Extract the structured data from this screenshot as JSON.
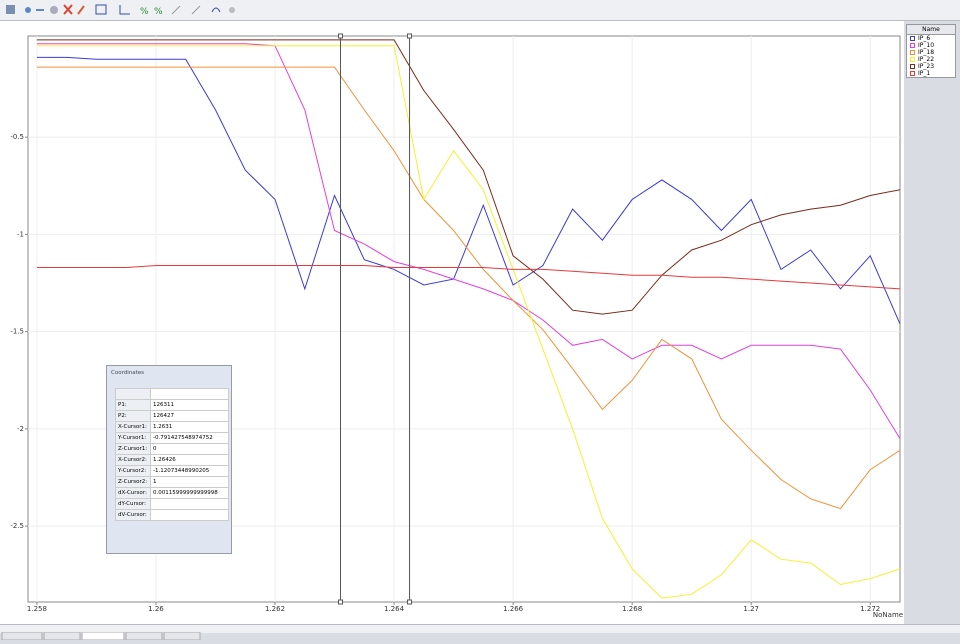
{
  "chart_data": {
    "type": "line",
    "x": [
      1.258,
      1.2585,
      1.259,
      1.2595,
      1.26,
      1.2605,
      1.261,
      1.2615,
      1.262,
      1.2625,
      1.263,
      1.2635,
      1.264,
      1.2645,
      1.265,
      1.2655,
      1.266,
      1.2665,
      1.267,
      1.2675,
      1.268,
      1.2685,
      1.269,
      1.2695,
      1.27,
      1.2705,
      1.271,
      1.2715,
      1.272,
      1.2725
    ],
    "series": [
      {
        "name": "IP_6",
        "color": "#3b3bd6",
        "values": [
          -0.09,
          -0.09,
          -0.1,
          -0.1,
          -0.1,
          -0.1,
          -0.36,
          -0.67,
          -0.82,
          -1.28,
          -0.8,
          -1.13,
          -1.18,
          -1.26,
          -1.23,
          -0.85,
          -1.26,
          -1.16,
          -0.87,
          -1.03,
          -0.82,
          -0.72,
          -0.82,
          -0.98,
          -0.82,
          -1.18,
          -1.08,
          -1.28,
          -1.11,
          -1.46
        ]
      },
      {
        "name": "IP_10",
        "color": "#e040e0",
        "values": [
          -0.02,
          -0.02,
          -0.02,
          -0.02,
          -0.02,
          -0.02,
          -0.02,
          -0.02,
          -0.03,
          -0.36,
          -0.98,
          -1.05,
          -1.14,
          -1.18,
          -1.23,
          -1.28,
          -1.34,
          -1.44,
          -1.57,
          -1.54,
          -1.64,
          -1.57,
          -1.57,
          -1.64,
          -1.57,
          -1.57,
          -1.57,
          -1.59,
          -1.8,
          -2.05
        ]
      },
      {
        "name": "IP_18",
        "color": "#f0923a",
        "values": [
          -0.14,
          -0.14,
          -0.14,
          -0.14,
          -0.14,
          -0.14,
          -0.14,
          -0.14,
          -0.14,
          -0.14,
          -0.14,
          -0.36,
          -0.57,
          -0.82,
          -0.98,
          -1.18,
          -1.34,
          -1.49,
          -1.69,
          -1.9,
          -1.75,
          -1.54,
          -1.64,
          -1.95,
          -2.11,
          -2.26,
          -2.36,
          -2.41,
          -2.21,
          -2.11
        ]
      },
      {
        "name": "IP_22",
        "color": "#f5f032",
        "values": [
          -0.03,
          -0.03,
          -0.03,
          -0.03,
          -0.03,
          -0.03,
          -0.03,
          -0.03,
          -0.03,
          -0.03,
          -0.03,
          -0.03,
          -0.03,
          -0.82,
          -0.57,
          -0.77,
          -1.18,
          -1.59,
          -2.0,
          -2.46,
          -2.72,
          -2.87,
          -2.85,
          -2.75,
          -2.57,
          -2.67,
          -2.69,
          -2.8,
          -2.77,
          -2.72
        ]
      },
      {
        "name": "IP_23",
        "color": "#7a2a1a",
        "values": [
          0.0,
          0.0,
          0.0,
          0.0,
          0.0,
          0.0,
          0.0,
          0.0,
          0.0,
          0.0,
          0.0,
          0.0,
          0.0,
          -0.26,
          -0.46,
          -0.67,
          -1.11,
          -1.23,
          -1.39,
          -1.41,
          -1.39,
          -1.21,
          -1.08,
          -1.03,
          -0.95,
          -0.9,
          -0.87,
          -0.85,
          -0.8,
          -0.77
        ]
      },
      {
        "name": "IP_1",
        "color": "#e83a3a",
        "values": [
          -1.17,
          -1.17,
          -1.17,
          -1.17,
          -1.16,
          -1.16,
          -1.16,
          -1.16,
          -1.16,
          -1.16,
          -1.16,
          -1.16,
          -1.17,
          -1.17,
          -1.17,
          -1.17,
          -1.18,
          -1.18,
          -1.19,
          -1.2,
          -1.21,
          -1.21,
          -1.22,
          -1.22,
          -1.23,
          -1.24,
          -1.25,
          -1.26,
          -1.27,
          -1.28
        ]
      }
    ],
    "cursors": [
      1.2631,
      1.26426
    ],
    "x_label": "NoName",
    "xlim": [
      1.25785,
      1.2725
    ],
    "xticks": [
      1.258,
      1.26,
      1.262,
      1.264,
      1.266,
      1.268,
      1.27,
      1.272
    ],
    "ylim": [
      -2.89,
      0.02
    ],
    "yticks": [
      -0.5,
      -1,
      -1.5,
      -2,
      -2.5
    ],
    "grid": true
  },
  "legend_header": "Name",
  "coordinates_panel": {
    "title": "Coordinates",
    "rows": [
      [
        "P1:",
        "126311"
      ],
      [
        "P2:",
        "126427"
      ],
      [
        "X-Cursor1:",
        "1.2631"
      ],
      [
        "Y-Cursor1:",
        "-0.791427548974752"
      ],
      [
        "Z-Cursor1:",
        "0"
      ],
      [
        "X-Cursor2:",
        "1.26426"
      ],
      [
        "Y-Cursor2:",
        "-1.12073448990205"
      ],
      [
        "Z-Cursor2:",
        "1"
      ],
      [
        "dX-Cursor:",
        "0.00115999999999998"
      ],
      [
        "dY-Cursor:"
      ],
      [
        "dV-Cursor:"
      ]
    ]
  }
}
